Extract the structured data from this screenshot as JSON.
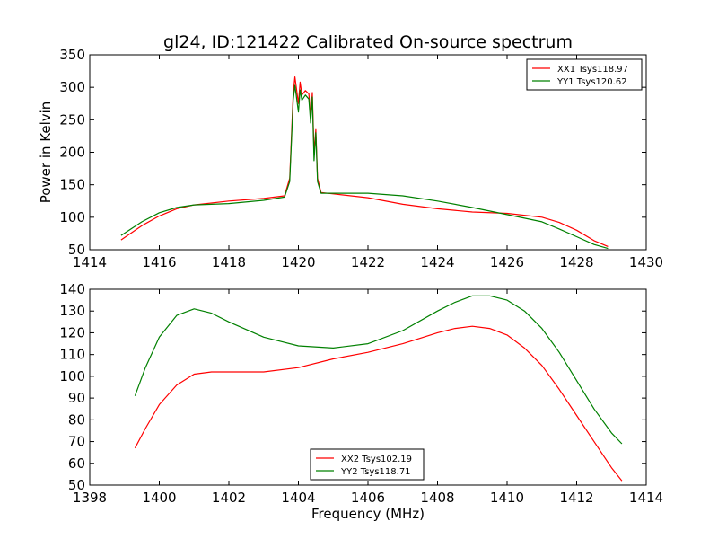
{
  "figure": {
    "title": "gl24, ID:121422 Calibrated On-source spectrum"
  },
  "chart_data": [
    {
      "type": "line",
      "title": "gl24, ID:121422 Calibrated On-source spectrum",
      "xlabel": "",
      "ylabel": "Power in Kelvin",
      "xlim": [
        1414,
        1430
      ],
      "ylim": [
        50,
        350
      ],
      "xticks": [
        1414,
        1416,
        1418,
        1420,
        1422,
        1424,
        1426,
        1428,
        1430
      ],
      "yticks": [
        50,
        100,
        150,
        200,
        250,
        300,
        350
      ],
      "legend_position": "upper-right",
      "series": [
        {
          "name": "XX1 Tsys118.97",
          "color": "#ff0000",
          "x": [
            1414.9,
            1415.5,
            1416.0,
            1416.5,
            1417.0,
            1418.0,
            1419.0,
            1419.6,
            1419.75,
            1419.85,
            1419.9,
            1420.0,
            1420.05,
            1420.1,
            1420.2,
            1420.3,
            1420.35,
            1420.4,
            1420.45,
            1420.5,
            1420.55,
            1420.65,
            1421.0,
            1422.0,
            1423.0,
            1424.0,
            1425.0,
            1426.0,
            1427.0,
            1427.5,
            1428.0,
            1428.5,
            1428.9
          ],
          "y": [
            65,
            87,
            102,
            113,
            119,
            125,
            129,
            133,
            160,
            290,
            316,
            275,
            308,
            288,
            295,
            290,
            255,
            292,
            200,
            235,
            160,
            138,
            136,
            130,
            120,
            113,
            108,
            106,
            100,
            92,
            80,
            64,
            55
          ]
        },
        {
          "name": "YY1 Tsys120.62",
          "color": "#008000",
          "x": [
            1414.9,
            1415.5,
            1416.0,
            1416.5,
            1417.0,
            1418.0,
            1419.0,
            1419.6,
            1419.75,
            1419.85,
            1419.9,
            1420.0,
            1420.05,
            1420.1,
            1420.2,
            1420.3,
            1420.35,
            1420.4,
            1420.45,
            1420.5,
            1420.55,
            1420.65,
            1421.0,
            1422.0,
            1423.0,
            1424.0,
            1425.0,
            1426.0,
            1427.0,
            1427.5,
            1428.0,
            1428.5,
            1428.9
          ],
          "y": [
            72,
            93,
            107,
            115,
            119,
            121,
            126,
            131,
            155,
            280,
            303,
            262,
            296,
            280,
            288,
            282,
            245,
            285,
            187,
            230,
            155,
            137,
            137,
            137,
            133,
            125,
            115,
            104,
            93,
            82,
            70,
            58,
            52
          ]
        }
      ]
    },
    {
      "type": "line",
      "title": "",
      "xlabel": "Frequency (MHz)",
      "ylabel": "",
      "xlim": [
        1398,
        1414
      ],
      "ylim": [
        50,
        140
      ],
      "xticks": [
        1398,
        1400,
        1402,
        1404,
        1406,
        1408,
        1410,
        1412,
        1414
      ],
      "yticks": [
        50,
        60,
        70,
        80,
        90,
        100,
        110,
        120,
        130,
        140
      ],
      "legend_position": "lower-center",
      "series": [
        {
          "name": "XX2 Tsys102.19",
          "color": "#ff0000",
          "x": [
            1399.3,
            1399.6,
            1400.0,
            1400.5,
            1401.0,
            1401.5,
            1402.0,
            1403.0,
            1404.0,
            1405.0,
            1406.0,
            1407.0,
            1408.0,
            1408.5,
            1409.0,
            1409.5,
            1410.0,
            1410.5,
            1411.0,
            1411.5,
            1412.0,
            1412.5,
            1413.0,
            1413.3
          ],
          "y": [
            67,
            76,
            87,
            96,
            101,
            102,
            102,
            102,
            104,
            108,
            111,
            115,
            120,
            122,
            123,
            122,
            119,
            113,
            105,
            94,
            82,
            70,
            58,
            52
          ]
        },
        {
          "name": "YY2 Tsys118.71",
          "color": "#008000",
          "x": [
            1399.3,
            1399.6,
            1400.0,
            1400.5,
            1401.0,
            1401.5,
            1402.0,
            1403.0,
            1404.0,
            1405.0,
            1406.0,
            1407.0,
            1408.0,
            1408.5,
            1409.0,
            1409.5,
            1410.0,
            1410.5,
            1411.0,
            1411.5,
            1412.0,
            1412.5,
            1413.0,
            1413.3
          ],
          "y": [
            91,
            104,
            118,
            128,
            131,
            129,
            125,
            118,
            114,
            113,
            115,
            121,
            130,
            134,
            137,
            137,
            135,
            130,
            122,
            111,
            98,
            85,
            74,
            69
          ]
        }
      ]
    }
  ]
}
